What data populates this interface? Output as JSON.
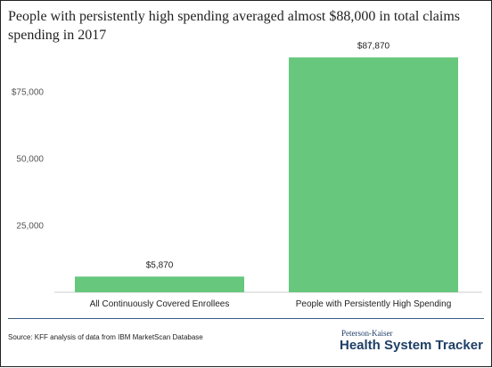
{
  "title": "People with persistently high spending averaged almost $88,000 in total claims spending in 2017",
  "chart_data": {
    "type": "bar",
    "categories": [
      "All Continuously Covered Enrollees",
      "People with Persistently High Spending"
    ],
    "values": [
      5870,
      87870
    ],
    "data_labels": [
      "$5,870",
      "$87,870"
    ],
    "ylim": [
      0,
      90000
    ],
    "yticks": [
      25000,
      50000,
      75000
    ],
    "ytick_labels": [
      "25,000",
      "50,000",
      "$75,000"
    ],
    "grid": false,
    "bar_color": "#66c77d"
  },
  "footer": {
    "source": "Source: KFF analysis of data from IBM MarketScan Database",
    "brand_top": "Peterson-Kaiser",
    "brand_main": "Health System Tracker"
  },
  "colors": {
    "bar": "#66c77d",
    "rule": "#3a5a80",
    "brand": "#1f3f66"
  }
}
